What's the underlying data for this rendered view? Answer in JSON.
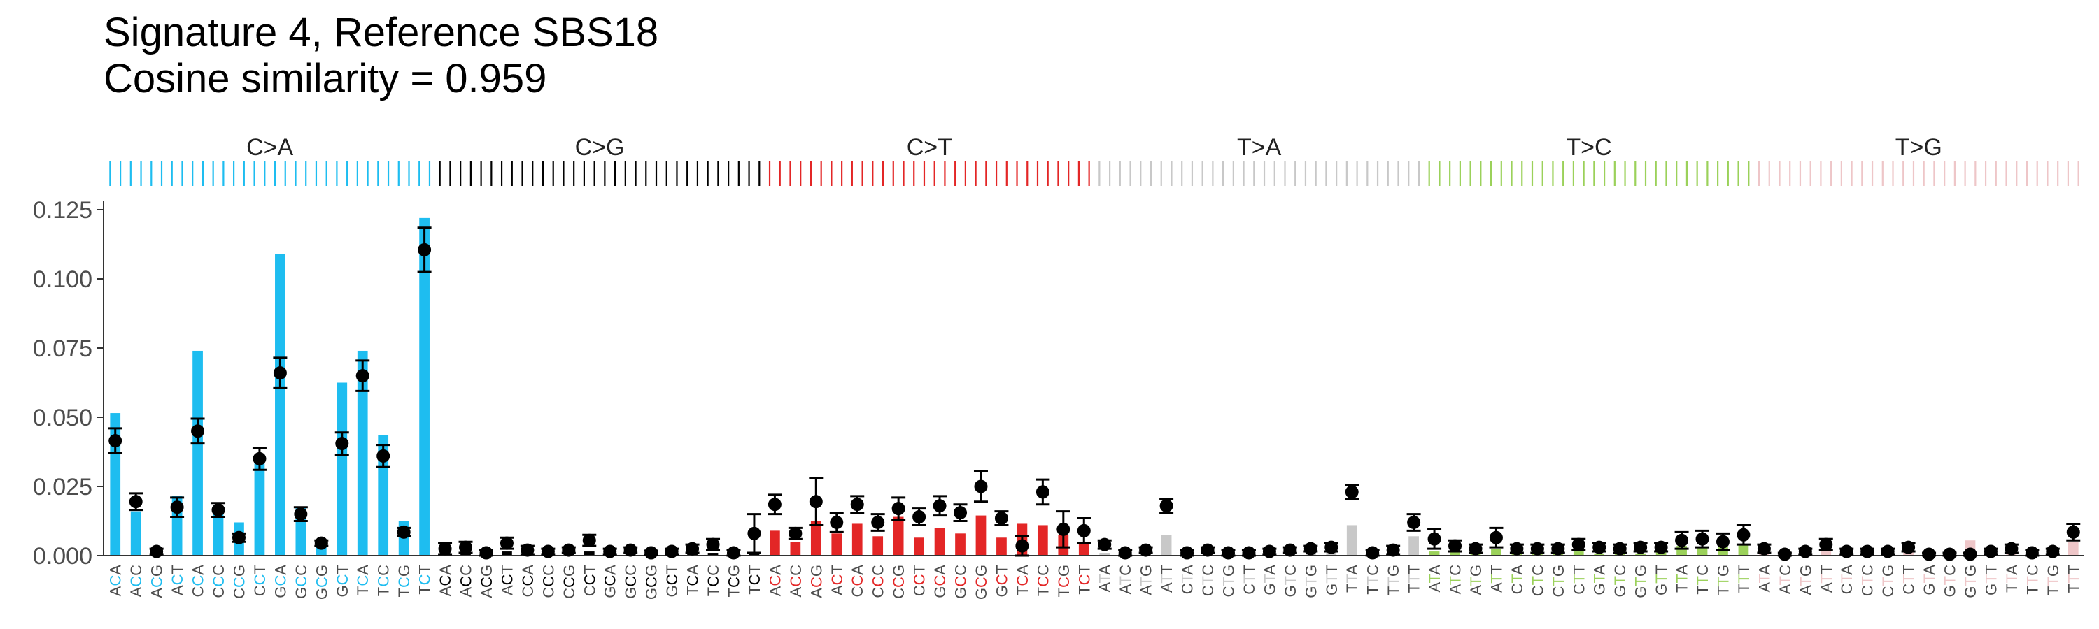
{
  "chart_data": {
    "type": "bar",
    "title": "Signature 4, Reference SBS18",
    "subtitle": "Cosine similarity = 0.959",
    "xlabel": "",
    "ylabel": "",
    "ylim": [
      0,
      0.125
    ],
    "yticks": [
      "0.000",
      "0.025",
      "0.050",
      "0.075",
      "0.100",
      "0.125"
    ],
    "grid": false,
    "mutation_types": [
      {
        "label": "C>A",
        "color": "#1ebdf0",
        "ref": "C"
      },
      {
        "label": "C>G",
        "color": "#000000",
        "ref": "C"
      },
      {
        "label": "C>T",
        "color": "#e32626",
        "ref": "C"
      },
      {
        "label": "T>A",
        "color": "#c8c8c8",
        "ref": "T"
      },
      {
        "label": "T>C",
        "color": "#9bd15a",
        "ref": "T"
      },
      {
        "label": "T>G",
        "color": "#eec6c8",
        "ref": "T"
      }
    ],
    "categories": [
      "ACA",
      "ACC",
      "ACG",
      "ACT",
      "CCA",
      "CCC",
      "CCG",
      "CCT",
      "GCA",
      "GCC",
      "GCG",
      "GCT",
      "TCA",
      "TCC",
      "TCG",
      "TCT",
      "ACA",
      "ACC",
      "ACG",
      "ACT",
      "CCA",
      "CCC",
      "CCG",
      "CCT",
      "GCA",
      "GCC",
      "GCG",
      "GCT",
      "TCA",
      "TCC",
      "TCG",
      "TCT",
      "ACA",
      "ACC",
      "ACG",
      "ACT",
      "CCA",
      "CCC",
      "CCG",
      "CCT",
      "GCA",
      "GCC",
      "GCG",
      "GCT",
      "TCA",
      "TCC",
      "TCG",
      "TCT",
      "ATA",
      "ATC",
      "ATG",
      "ATT",
      "CTA",
      "CTC",
      "CTG",
      "CTT",
      "GTA",
      "GTC",
      "GTG",
      "GTT",
      "TTA",
      "TTC",
      "TTG",
      "TTT",
      "ATA",
      "ATC",
      "ATG",
      "ATT",
      "CTA",
      "CTC",
      "CTG",
      "CTT",
      "GTA",
      "GTC",
      "GTG",
      "GTT",
      "TTA",
      "TTC",
      "TTG",
      "TTT",
      "ATA",
      "ATC",
      "ATG",
      "ATT",
      "CTA",
      "CTC",
      "CTG",
      "CTT",
      "GTA",
      "GTC",
      "GTG",
      "GTT",
      "TTA",
      "TTC",
      "TTG",
      "TTT"
    ],
    "series": [
      {
        "type": "bar",
        "values": [
          0.0515,
          0.016,
          0.002,
          0.0215,
          0.074,
          0.016,
          0.012,
          0.0365,
          0.109,
          0.0175,
          0.0045,
          0.0625,
          0.074,
          0.0435,
          0.0125,
          0.122,
          0.001,
          0.0015,
          0.0005,
          0.0015,
          0.001,
          0.0008,
          0.0008,
          0.0015,
          0.0012,
          0.001,
          0.0008,
          0.0008,
          0.0012,
          0.001,
          0.0008,
          0.001,
          0.009,
          0.005,
          0.0125,
          0.008,
          0.0115,
          0.007,
          0.014,
          0.0065,
          0.01,
          0.008,
          0.0145,
          0.0065,
          0.0115,
          0.011,
          0.0075,
          0.0045,
          0.001,
          0.0008,
          0.001,
          0.0075,
          0.001,
          0.0008,
          0.0008,
          0.0008,
          0.0008,
          0.0008,
          0.0008,
          0.0015,
          0.011,
          0.001,
          0.0015,
          0.007,
          0.0015,
          0.0015,
          0.0015,
          0.0025,
          0.0008,
          0.0008,
          0.0008,
          0.0015,
          0.0008,
          0.0008,
          0.0008,
          0.0015,
          0.0035,
          0.003,
          0.003,
          0.004,
          0.0015,
          0.0005,
          0.0005,
          0.0015,
          0.0008,
          0.0008,
          0.0008,
          0.0015,
          0.0005,
          0.0015,
          0.0055,
          0.001,
          0.001,
          0.0015,
          0.0008,
          0.005
        ]
      },
      {
        "type": "point",
        "values": [
          0.0415,
          0.0195,
          0.0015,
          0.0175,
          0.045,
          0.0165,
          0.0065,
          0.035,
          0.066,
          0.015,
          0.0045,
          0.0405,
          0.065,
          0.036,
          0.0085,
          0.1105,
          0.0025,
          0.003,
          0.001,
          0.0045,
          0.002,
          0.0015,
          0.002,
          0.0055,
          0.0015,
          0.002,
          0.001,
          0.0015,
          0.0025,
          0.004,
          0.001,
          0.008,
          0.0185,
          0.008,
          0.0195,
          0.012,
          0.0185,
          0.012,
          0.017,
          0.014,
          0.018,
          0.0155,
          0.025,
          0.0135,
          0.0035,
          0.023,
          0.0095,
          0.009,
          0.004,
          0.001,
          0.002,
          0.018,
          0.001,
          0.002,
          0.001,
          0.001,
          0.0015,
          0.002,
          0.0025,
          0.003,
          0.023,
          0.001,
          0.002,
          0.012,
          0.006,
          0.0035,
          0.0025,
          0.0065,
          0.0025,
          0.0025,
          0.0025,
          0.004,
          0.003,
          0.0025,
          0.003,
          0.003,
          0.0055,
          0.006,
          0.005,
          0.0075,
          0.0025,
          0.0005,
          0.0015,
          0.004,
          0.0015,
          0.0015,
          0.0015,
          0.003,
          0.0005,
          0.0005,
          0.0005,
          0.0015,
          0.0025,
          0.001,
          0.0015,
          0.0085
        ],
        "error": [
          0.0045,
          0.003,
          0.001,
          0.0035,
          0.0045,
          0.0025,
          0.0015,
          0.004,
          0.0055,
          0.0025,
          0.001,
          0.004,
          0.0055,
          0.004,
          0.0015,
          0.008,
          0.002,
          0.002,
          0.001,
          0.002,
          0.0015,
          0.001,
          0.001,
          0.002,
          0.001,
          0.001,
          0.0008,
          0.001,
          0.0015,
          0.002,
          0.001,
          0.007,
          0.0035,
          0.002,
          0.0085,
          0.0035,
          0.003,
          0.003,
          0.004,
          0.003,
          0.0035,
          0.003,
          0.0055,
          0.0025,
          0.0035,
          0.0045,
          0.0065,
          0.0045,
          0.0015,
          0.001,
          0.001,
          0.0025,
          0.001,
          0.001,
          0.001,
          0.001,
          0.001,
          0.001,
          0.001,
          0.0015,
          0.0025,
          0.001,
          0.0015,
          0.003,
          0.0035,
          0.002,
          0.0015,
          0.0035,
          0.0015,
          0.0015,
          0.0015,
          0.002,
          0.0015,
          0.0015,
          0.0015,
          0.0015,
          0.003,
          0.003,
          0.003,
          0.0035,
          0.0015,
          0.0005,
          0.001,
          0.002,
          0.001,
          0.001,
          0.001,
          0.0015,
          0.0005,
          0.0005,
          0.0005,
          0.001,
          0.0015,
          0.001,
          0.001,
          0.003
        ]
      }
    ]
  }
}
